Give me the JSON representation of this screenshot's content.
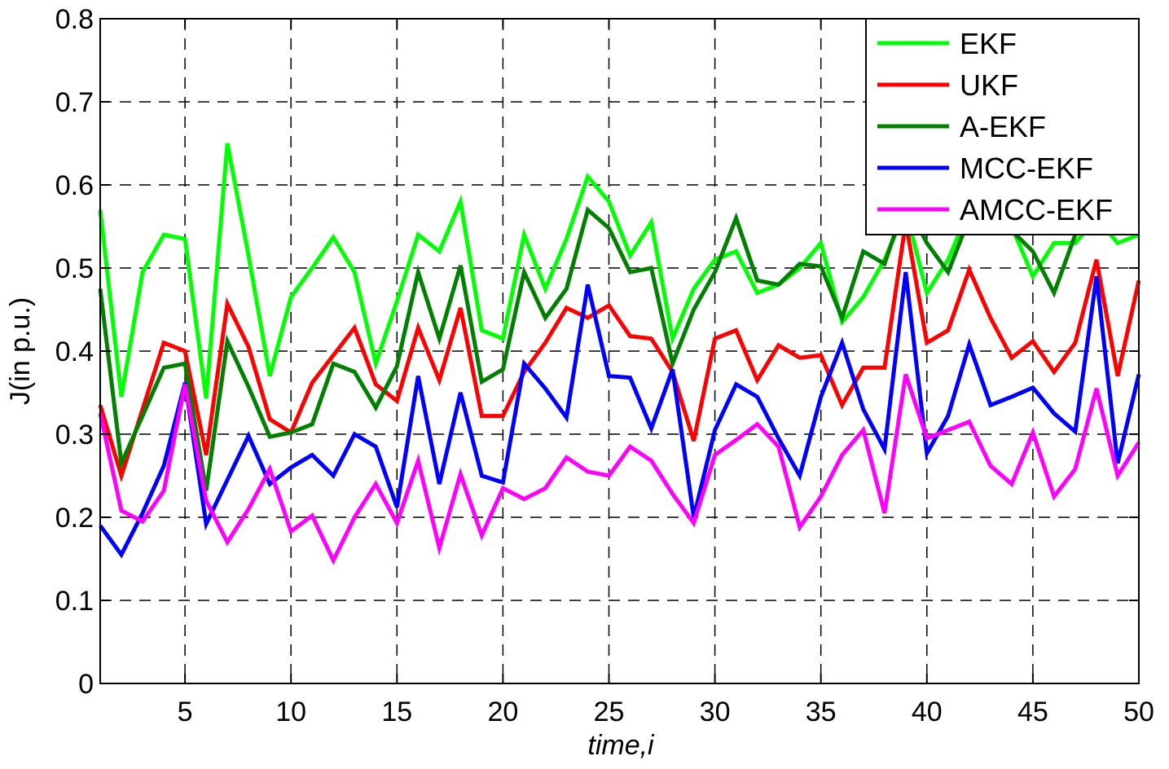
{
  "chart_data": {
    "type": "line",
    "xlabel": "time,i",
    "ylabel": "J(in p.u.)",
    "xlim": [
      1,
      50
    ],
    "ylim": [
      0,
      0.8
    ],
    "xticks": [
      5,
      10,
      15,
      20,
      25,
      30,
      35,
      40,
      45,
      50
    ],
    "yticks": [
      0,
      0.1,
      0.2,
      0.3,
      0.4,
      0.5,
      0.6,
      0.7,
      0.8
    ],
    "ytick_labels": [
      "0",
      "0.1",
      "0.2",
      "0.3",
      "0.4",
      "0.5",
      "0.6",
      "0.7",
      "0.8"
    ],
    "grid": true,
    "legend_position": "top-right",
    "x": [
      1,
      2,
      3,
      4,
      5,
      6,
      7,
      8,
      9,
      10,
      11,
      12,
      13,
      14,
      15,
      16,
      17,
      18,
      19,
      20,
      21,
      22,
      23,
      24,
      25,
      26,
      27,
      28,
      29,
      30,
      31,
      32,
      33,
      34,
      35,
      36,
      37,
      38,
      39,
      40,
      41,
      42,
      43,
      44,
      45,
      46,
      47,
      48,
      49,
      50
    ],
    "series": [
      {
        "name": "EKF",
        "color": "#00ff00",
        "values": [
          0.57,
          0.345,
          0.495,
          0.54,
          0.535,
          0.343,
          0.65,
          0.515,
          0.37,
          0.465,
          0.5,
          0.537,
          0.495,
          0.385,
          0.46,
          0.54,
          0.52,
          0.58,
          0.425,
          0.415,
          0.54,
          0.475,
          0.535,
          0.61,
          0.58,
          0.515,
          0.555,
          0.415,
          0.475,
          0.51,
          0.52,
          0.47,
          0.48,
          0.5,
          0.53,
          0.435,
          0.465,
          0.51,
          0.57,
          0.47,
          0.51,
          0.57,
          0.56,
          0.55,
          0.49,
          0.53,
          0.53,
          0.56,
          0.53,
          0.54
        ]
      },
      {
        "name": "UKF",
        "color": "#ff0000",
        "values": [
          0.335,
          0.25,
          0.33,
          0.41,
          0.4,
          0.275,
          0.457,
          0.405,
          0.318,
          0.302,
          0.362,
          0.395,
          0.428,
          0.36,
          0.34,
          0.428,
          0.365,
          0.452,
          0.322,
          0.322,
          0.375,
          0.41,
          0.452,
          0.44,
          0.455,
          0.418,
          0.415,
          0.375,
          0.292,
          0.415,
          0.425,
          0.365,
          0.407,
          0.392,
          0.395,
          0.335,
          0.38,
          0.38,
          0.555,
          0.41,
          0.425,
          0.498,
          0.44,
          0.392,
          0.412,
          0.375,
          0.41,
          0.51,
          0.37,
          0.485
        ]
      },
      {
        "name": "A-EKF",
        "color": "#008000",
        "values": [
          0.475,
          0.265,
          0.322,
          0.38,
          0.385,
          0.232,
          0.412,
          0.357,
          0.297,
          0.302,
          0.312,
          0.385,
          0.375,
          0.332,
          0.382,
          0.495,
          0.415,
          0.503,
          0.363,
          0.378,
          0.495,
          0.44,
          0.475,
          0.57,
          0.548,
          0.495,
          0.5,
          0.385,
          0.45,
          0.495,
          0.56,
          0.485,
          0.48,
          0.505,
          0.502,
          0.44,
          0.52,
          0.505,
          0.58,
          0.53,
          0.495,
          0.56,
          0.56,
          0.545,
          0.52,
          0.47,
          0.54,
          0.56,
          0.55,
          0.56
        ]
      },
      {
        "name": "MCC-EKF",
        "color": "#0000ff",
        "values": [
          0.19,
          0.155,
          0.205,
          0.262,
          0.362,
          0.192,
          0.245,
          0.298,
          0.24,
          0.26,
          0.275,
          0.25,
          0.3,
          0.285,
          0.212,
          0.37,
          0.24,
          0.35,
          0.25,
          0.242,
          0.385,
          0.355,
          0.32,
          0.48,
          0.37,
          0.368,
          0.307,
          0.378,
          0.2,
          0.305,
          0.36,
          0.345,
          0.295,
          0.25,
          0.345,
          0.41,
          0.33,
          0.282,
          0.495,
          0.277,
          0.322,
          0.408,
          0.335,
          0.345,
          0.356,
          0.325,
          0.303,
          0.49,
          0.265,
          0.372
        ]
      },
      {
        "name": "AMCC-EKF",
        "color": "#ff00ff",
        "values": [
          0.325,
          0.208,
          0.195,
          0.232,
          0.36,
          0.22,
          0.17,
          0.21,
          0.258,
          0.183,
          0.202,
          0.148,
          0.2,
          0.24,
          0.193,
          0.268,
          0.163,
          0.252,
          0.178,
          0.235,
          0.222,
          0.235,
          0.272,
          0.255,
          0.25,
          0.285,
          0.268,
          0.228,
          0.193,
          0.275,
          0.293,
          0.312,
          0.285,
          0.188,
          0.225,
          0.275,
          0.305,
          0.205,
          0.372,
          0.295,
          0.305,
          0.315,
          0.262,
          0.24,
          0.302,
          0.225,
          0.258,
          0.355,
          0.25,
          0.29
        ]
      }
    ]
  }
}
